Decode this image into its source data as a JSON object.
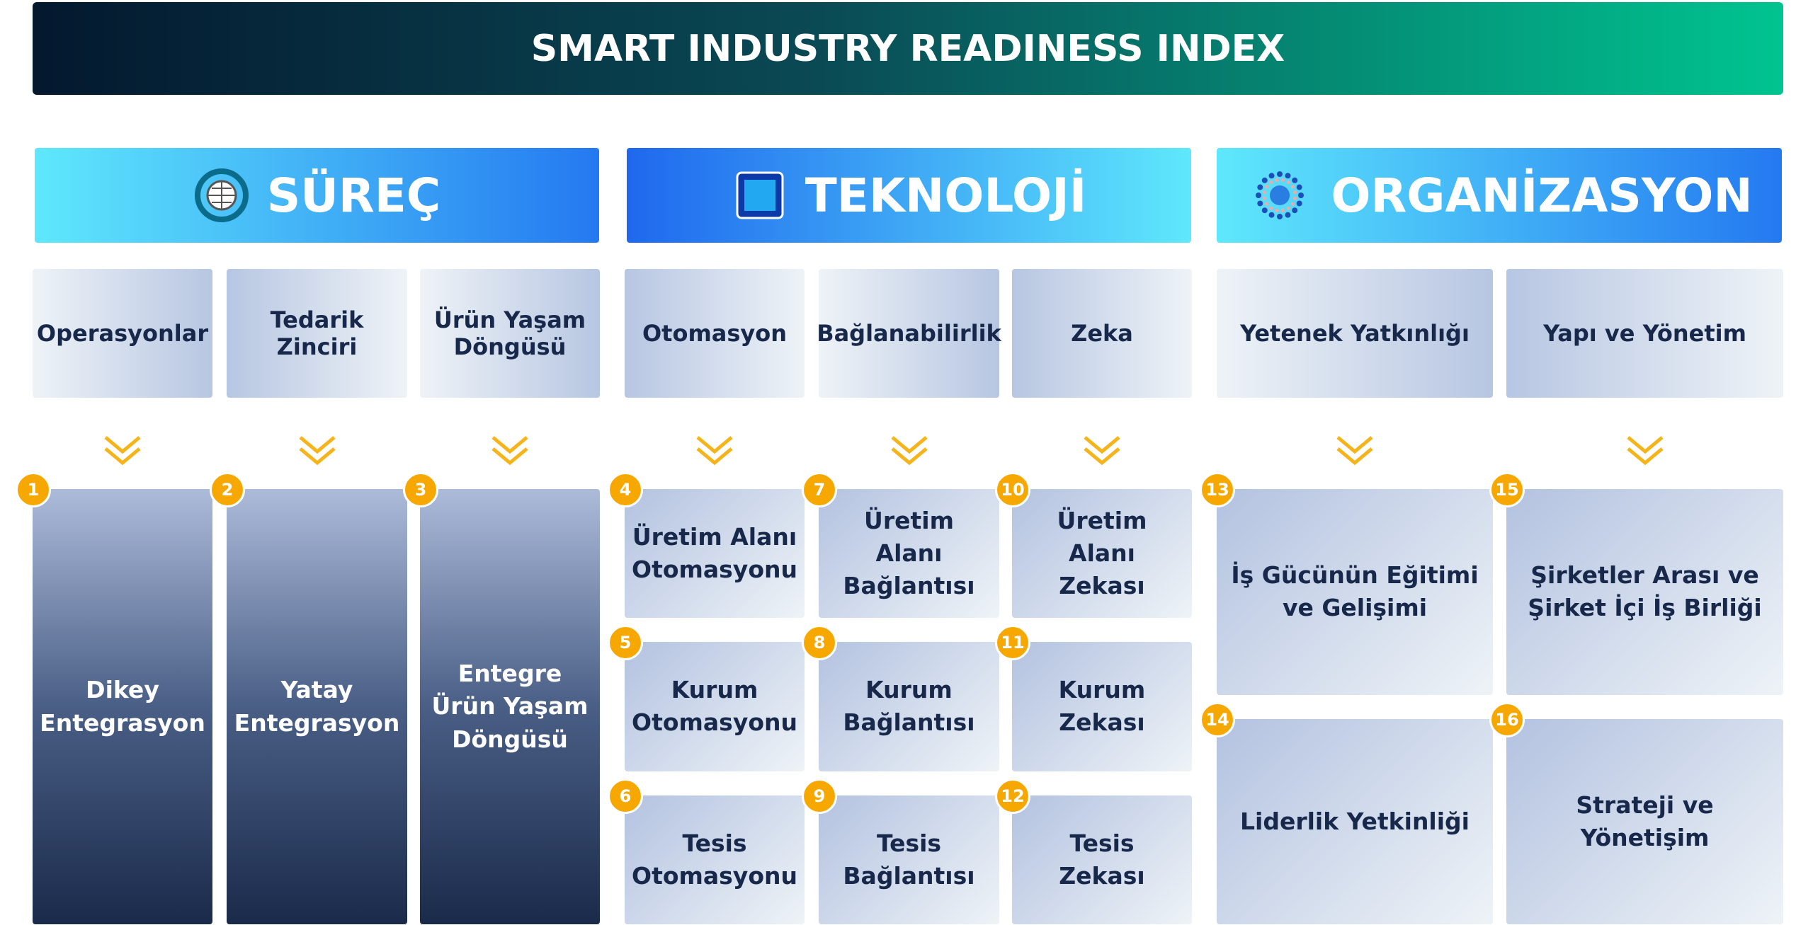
{
  "title": "SMART INDUSTRY READINESS INDEX",
  "pillars": [
    {
      "name": "SÜREÇ",
      "dimensions": [
        {
          "name": "Operasyonlar",
          "items": [
            {
              "number": "1",
              "label": "Dikey Entegrasyon"
            }
          ]
        },
        {
          "name": "Tedarik Zinciri",
          "items": [
            {
              "number": "2",
              "label": "Yatay Entegrasyon"
            }
          ]
        },
        {
          "name": "Ürün Yaşam Döngüsü",
          "items": [
            {
              "number": "3",
              "label": "Entegre Ürün Yaşam Döngüsü"
            }
          ]
        }
      ]
    },
    {
      "name": "TEKNOLOJİ",
      "dimensions": [
        {
          "name": "Otomasyon",
          "items": [
            {
              "number": "4",
              "label": "Üretim Alanı Otomasyonu"
            },
            {
              "number": "5",
              "label": "Kurum Otomasyonu"
            },
            {
              "number": "6",
              "label": "Tesis Otomasyonu"
            }
          ]
        },
        {
          "name": "Bağlanabilirlik",
          "items": [
            {
              "number": "7",
              "label": "Üretim Alanı Bağlantısı"
            },
            {
              "number": "8",
              "label": "Kurum Bağlantısı"
            },
            {
              "number": "9",
              "label": "Tesis Bağlantısı"
            }
          ]
        },
        {
          "name": "Zeka",
          "items": [
            {
              "number": "10",
              "label": "Üretim Alanı Zekası"
            },
            {
              "number": "11",
              "label": "Kurum Zekası"
            },
            {
              "number": "12",
              "label": "Tesis Zekası"
            }
          ]
        }
      ]
    },
    {
      "name": "ORGANİZASYON",
      "dimensions": [
        {
          "name": "Yetenek Yatkınlığı",
          "items": [
            {
              "number": "13",
              "label": "İş Gücünün Eğitimi ve Gelişimi"
            },
            {
              "number": "14",
              "label": "Liderlik Yetkinliği"
            }
          ]
        },
        {
          "name": "Yapı ve Yönetim",
          "items": [
            {
              "number": "15",
              "label": "Şirketler Arası ve Şirket İçi İş Birliği"
            },
            {
              "number": "16",
              "label": "Strateji ve Yönetişim"
            }
          ]
        }
      ]
    }
  ]
}
